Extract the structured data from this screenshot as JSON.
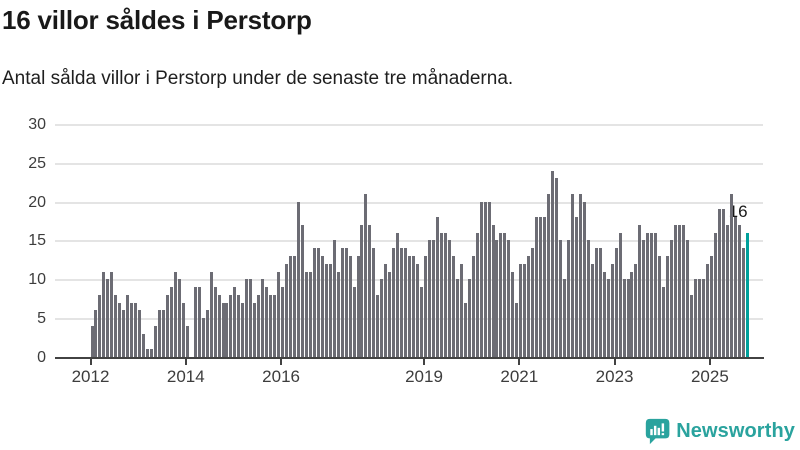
{
  "header": {
    "title": "16 villor såldes i Perstorp",
    "subtitle": "Antal sålda villor i Perstorp under de senaste tre månaderna."
  },
  "chart_data": {
    "type": "bar",
    "title": "16 villor såldes i Perstorp",
    "subtitle": "Antal sålda villor i Perstorp under de senaste tre månaderna.",
    "frequency": "monthly",
    "x_start": "2012-01",
    "x_end": "2025-10",
    "values": [
      4,
      6,
      8,
      11,
      10,
      11,
      8,
      7,
      6,
      8,
      7,
      7,
      6,
      3,
      1,
      1,
      4,
      6,
      6,
      8,
      9,
      11,
      10,
      7,
      4,
      0,
      9,
      9,
      5,
      6,
      11,
      9,
      8,
      7,
      7,
      8,
      9,
      8,
      7,
      10,
      10,
      7,
      8,
      10,
      9,
      8,
      8,
      11,
      9,
      12,
      13,
      13,
      20,
      17,
      11,
      11,
      14,
      14,
      13,
      12,
      12,
      15,
      11,
      14,
      14,
      13,
      9,
      13,
      17,
      21,
      17,
      14,
      8,
      10,
      12,
      11,
      14,
      16,
      14,
      14,
      13,
      13,
      12,
      9,
      13,
      15,
      15,
      18,
      16,
      16,
      15,
      13,
      10,
      12,
      7,
      10,
      13,
      16,
      20,
      20,
      20,
      17,
      15,
      16,
      16,
      15,
      11,
      7,
      12,
      12,
      13,
      14,
      18,
      18,
      18,
      21,
      24,
      23,
      15,
      10,
      15,
      21,
      18,
      21,
      20,
      15,
      12,
      14,
      14,
      11,
      10,
      12,
      14,
      16,
      10,
      10,
      11,
      12,
      17,
      15,
      16,
      16,
      16,
      13,
      9,
      13,
      15,
      17,
      17,
      17,
      15,
      8,
      10,
      10,
      10,
      12,
      13,
      16,
      19,
      19,
      17,
      21,
      18,
      17,
      14,
      16
    ],
    "ylim": [
      0,
      30
    ],
    "y_ticks": [
      0,
      5,
      10,
      15,
      20,
      25,
      30
    ],
    "x_tick_years": [
      "2012",
      "2014",
      "2016",
      "2019",
      "2021",
      "2023",
      "2025"
    ],
    "grid": "horizontal",
    "legend": "none",
    "bar_color": "#6c6c74",
    "highlight_color": "#00a09b",
    "highlight_index": 165,
    "annotation": {
      "text": "16",
      "target": "last-bar"
    }
  },
  "footer": {
    "brand": "Newsworthy",
    "brand_color": "#2aa39e",
    "logo_icon": "bar-chart-speech-bubble-icon"
  }
}
